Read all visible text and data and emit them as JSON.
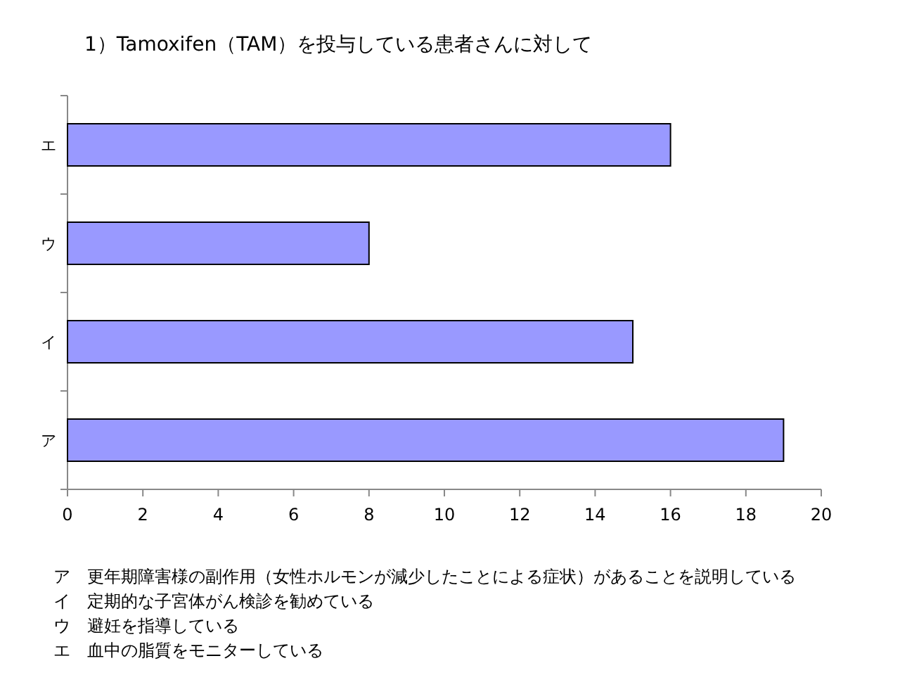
{
  "chart_data": {
    "type": "bar",
    "orientation": "horizontal",
    "title": "1）Tamoxifen（TAM）を投与している患者さんに対して",
    "categories": [
      "エ",
      "ウ",
      "イ",
      "ア"
    ],
    "values": [
      16,
      8,
      15,
      19
    ],
    "color": "#9999ff",
    "xlim": [
      0,
      20
    ],
    "xticks": [
      0,
      2,
      4,
      6,
      8,
      10,
      12,
      14,
      16,
      18,
      20
    ],
    "grid": false,
    "annotations": [
      "ア　更年期障害様の副作用（女性ホルモンが減少したことによる症状）があることを説明している",
      "イ　定期的な子宮体がん検診を勧めている",
      "ウ　避妊を指導している",
      "エ　血中の脂質をモニターしている"
    ]
  }
}
